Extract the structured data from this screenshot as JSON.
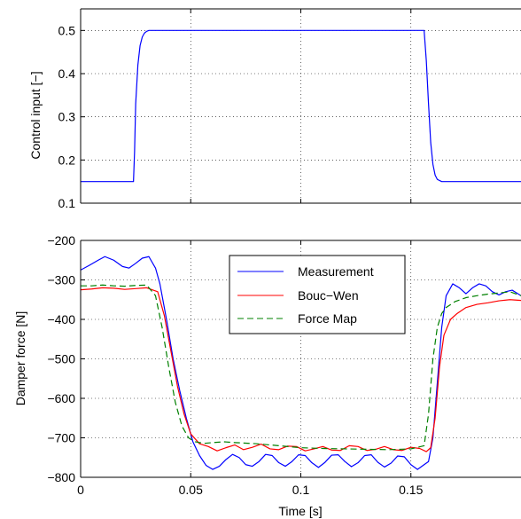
{
  "chart_data": [
    {
      "type": "line",
      "xlabel": "",
      "ylabel": "Control input [−]",
      "xlim": [
        0,
        0.2
      ],
      "ylim": [
        0.1,
        0.55
      ],
      "yticks": [
        "0.1",
        "0.2",
        "0.3",
        "0.4",
        "0.5"
      ],
      "ytick_values": [
        0.1,
        0.2,
        0.3,
        0.4,
        0.5
      ],
      "xtick_values": [
        0,
        0.05,
        0.1,
        0.15
      ],
      "grid": true,
      "series": [
        {
          "color": "#0000ff",
          "x": [
            0,
            0.024,
            0.0245,
            0.025,
            0.026,
            0.027,
            0.028,
            0.029,
            0.03,
            0.031,
            0.032,
            0.035,
            0.156,
            0.157,
            0.158,
            0.159,
            0.16,
            0.161,
            0.162,
            0.164,
            0.2
          ],
          "y": [
            0.15,
            0.15,
            0.22,
            0.33,
            0.42,
            0.465,
            0.485,
            0.494,
            0.498,
            0.5,
            0.5,
            0.5,
            0.5,
            0.43,
            0.33,
            0.24,
            0.19,
            0.165,
            0.155,
            0.15,
            0.15
          ]
        }
      ]
    },
    {
      "type": "line",
      "xlabel": "Time [s]",
      "ylabel": "Damper force [N]",
      "xlim": [
        0,
        0.2
      ],
      "ylim": [
        -800,
        -200
      ],
      "yticks": [
        "−800",
        "−700",
        "−600",
        "−500",
        "−400",
        "−300",
        "−200"
      ],
      "ytick_values": [
        -800,
        -700,
        -600,
        -500,
        -400,
        -300,
        -200
      ],
      "xticks": [
        "0",
        "0.05",
        "0.1",
        "0.15"
      ],
      "xtick_values": [
        0,
        0.05,
        0.1,
        0.15
      ],
      "grid": true,
      "legend_position": "top-center",
      "series": [
        {
          "name": "Measurement",
          "color": "#0000ff",
          "style": "solid",
          "x": [
            0,
            0.004,
            0.008,
            0.011,
            0.015,
            0.019,
            0.022,
            0.025,
            0.028,
            0.031,
            0.034,
            0.036,
            0.039,
            0.042,
            0.045,
            0.048,
            0.051,
            0.054,
            0.057,
            0.06,
            0.063,
            0.066,
            0.069,
            0.072,
            0.075,
            0.078,
            0.081,
            0.084,
            0.087,
            0.09,
            0.093,
            0.096,
            0.099,
            0.102,
            0.105,
            0.108,
            0.111,
            0.114,
            0.117,
            0.12,
            0.123,
            0.126,
            0.129,
            0.132,
            0.135,
            0.138,
            0.141,
            0.144,
            0.147,
            0.15,
            0.153,
            0.156,
            0.158,
            0.16,
            0.162,
            0.164,
            0.166,
            0.169,
            0.172,
            0.175,
            0.178,
            0.181,
            0.184,
            0.187,
            0.19,
            0.193,
            0.196,
            0.2
          ],
          "y": [
            -275,
            -263,
            -250,
            -241,
            -250,
            -266,
            -270,
            -258,
            -245,
            -241,
            -270,
            -310,
            -400,
            -500,
            -580,
            -650,
            -710,
            -745,
            -770,
            -780,
            -772,
            -755,
            -742,
            -750,
            -768,
            -772,
            -760,
            -742,
            -745,
            -763,
            -772,
            -760,
            -743,
            -745,
            -763,
            -775,
            -762,
            -744,
            -743,
            -760,
            -773,
            -763,
            -745,
            -743,
            -762,
            -774,
            -764,
            -746,
            -748,
            -768,
            -780,
            -768,
            -760,
            -700,
            -560,
            -420,
            -340,
            -310,
            -320,
            -335,
            -320,
            -310,
            -315,
            -330,
            -338,
            -330,
            -326,
            -340
          ]
        },
        {
          "name": "Bouc−Wen",
          "color": "#ff0000",
          "style": "solid",
          "x": [
            0,
            0.005,
            0.01,
            0.015,
            0.02,
            0.025,
            0.03,
            0.035,
            0.038,
            0.041,
            0.044,
            0.047,
            0.05,
            0.054,
            0.058,
            0.062,
            0.066,
            0.07,
            0.074,
            0.078,
            0.082,
            0.086,
            0.09,
            0.094,
            0.098,
            0.102,
            0.106,
            0.11,
            0.114,
            0.118,
            0.122,
            0.126,
            0.13,
            0.134,
            0.138,
            0.142,
            0.146,
            0.15,
            0.154,
            0.157,
            0.159,
            0.161,
            0.163,
            0.165,
            0.168,
            0.171,
            0.175,
            0.18,
            0.185,
            0.19,
            0.195,
            0.2
          ],
          "y": [
            -325,
            -323,
            -320,
            -321,
            -324,
            -322,
            -320,
            -330,
            -390,
            -480,
            -570,
            -640,
            -690,
            -715,
            -722,
            -733,
            -725,
            -718,
            -730,
            -724,
            -716,
            -728,
            -730,
            -721,
            -722,
            -733,
            -728,
            -722,
            -731,
            -732,
            -720,
            -722,
            -732,
            -729,
            -722,
            -730,
            -732,
            -724,
            -727,
            -735,
            -725,
            -650,
            -520,
            -440,
            -400,
            -385,
            -370,
            -362,
            -358,
            -353,
            -350,
            -352
          ]
        },
        {
          "name": "Force Map",
          "color": "#008000",
          "style": "dashed",
          "x": [
            0,
            0.005,
            0.01,
            0.015,
            0.02,
            0.025,
            0.03,
            0.034,
            0.037,
            0.04,
            0.043,
            0.046,
            0.049,
            0.052,
            0.056,
            0.06,
            0.065,
            0.07,
            0.08,
            0.09,
            0.1,
            0.11,
            0.12,
            0.13,
            0.14,
            0.15,
            0.156,
            0.158,
            0.16,
            0.162,
            0.164,
            0.166,
            0.17,
            0.175,
            0.18,
            0.185,
            0.19,
            0.195,
            0.2
          ],
          "y": [
            -315,
            -315,
            -313,
            -315,
            -316,
            -314,
            -313,
            -340,
            -420,
            -520,
            -610,
            -670,
            -700,
            -710,
            -714,
            -712,
            -710,
            -712,
            -715,
            -720,
            -725,
            -727,
            -728,
            -729,
            -730,
            -728,
            -720,
            -640,
            -500,
            -420,
            -385,
            -370,
            -355,
            -345,
            -340,
            -336,
            -333,
            -330,
            -340
          ]
        }
      ]
    }
  ]
}
